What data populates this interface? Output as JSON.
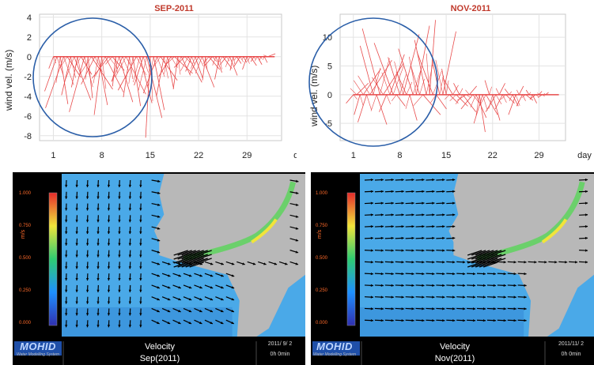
{
  "chart_data": [
    {
      "type": "line",
      "title": "SEP-2011",
      "ylabel": "wind vel. (m/s)",
      "xlabel": "day",
      "x_ticks": [
        "1",
        "8",
        "15",
        "22",
        "29"
      ],
      "y_ticks": [
        "4",
        "2",
        "0",
        "-2",
        "-4",
        "-6",
        "-8"
      ],
      "ylim": [
        -8.5,
        4.3
      ],
      "xlim": [
        -1,
        34
      ],
      "grid": true,
      "series_color": "#e84a4a",
      "annotation": "circle highlighting days 1-15",
      "stick_series": {
        "x": [
          1,
          1.5,
          2,
          2.5,
          3,
          3.5,
          4,
          4.5,
          5,
          5.5,
          6,
          6.5,
          7,
          7.5,
          8,
          8.5,
          9,
          9.5,
          10,
          10.5,
          11,
          11.5,
          12,
          12.5,
          13,
          13.5,
          14,
          14.5,
          15,
          15.5,
          16,
          16.5,
          17,
          17.5,
          18,
          18.5,
          19,
          19.5,
          20,
          20.5,
          21,
          21.5,
          22,
          22.5,
          23,
          23.5,
          24,
          24.5,
          25,
          25.5,
          26,
          26.5,
          27,
          27.5,
          28,
          28.5,
          29,
          29.5,
          30,
          30.5,
          31,
          31.5,
          32
        ],
        "y": [
          -1.2,
          -3.5,
          -4.8,
          -5.2,
          -2.1,
          -3.9,
          -4.4,
          -3.1,
          -1.8,
          -5.6,
          -4.2,
          -3.3,
          -2.8,
          -4.9,
          -5.9,
          -3.6,
          -2.2,
          -1.4,
          -3.0,
          -4.6,
          -2.5,
          -3.8,
          -4.1,
          -5.0,
          -3.4,
          -4.7,
          -2.9,
          -6.2,
          -8.2,
          -5.4,
          -3.7,
          -2.4,
          -4.0,
          -3.2,
          -2.0,
          -1.7,
          -3.3,
          -1.9,
          -1.1,
          -2.6,
          -1.5,
          -2.2,
          -1.8,
          -3.1,
          -2.4,
          -1.3,
          -0.9,
          -1.6,
          -2.3,
          -1.2,
          -0.8,
          -1.9,
          -1.4,
          -0.7,
          -1.0,
          -0.6,
          -1.3,
          -0.9,
          -0.5,
          -0.8,
          -0.4,
          -0.6,
          0.3
        ],
        "u": [
          -0.3,
          -0.8,
          0.5,
          -1.2,
          0.9,
          -0.6,
          1.1,
          -0.4,
          0.7,
          -1.0,
          0.3,
          1.4,
          -0.9,
          0.6,
          -0.5,
          1.2,
          -1.1,
          0.8,
          -0.2,
          0.9,
          -0.7,
          1.3,
          -0.4,
          0.5,
          -1.2,
          0.8,
          -0.6,
          1.0,
          -0.3,
          0.7,
          -0.9,
          1.1,
          -0.5,
          0.4,
          -0.8,
          1.2,
          -0.3,
          0.6,
          -0.7,
          0.9,
          -0.4,
          0.5,
          -0.6,
          0.8,
          -0.2,
          0.7,
          -0.5,
          0.4,
          -0.3,
          0.6,
          -0.4,
          0.5,
          -0.2,
          0.3,
          -0.4,
          0.2,
          -0.3,
          0.4,
          -0.2,
          0.3,
          -0.1,
          0.2,
          0.5
        ]
      }
    },
    {
      "type": "line",
      "title": "NOV-2011",
      "ylabel": "wind vel. (m/s)",
      "xlabel": "day",
      "x_ticks": [
        "1",
        "8",
        "15",
        "22",
        "29"
      ],
      "y_ticks": [
        "10",
        "5",
        "0",
        "-5"
      ],
      "ylim": [
        -8,
        14
      ],
      "xlim": [
        -1,
        33
      ],
      "grid": true,
      "series_color": "#e84a4a",
      "annotation": "circle highlighting days 1-15",
      "stick_series": {
        "x": [
          1,
          1.5,
          2,
          2.5,
          3,
          3.5,
          4,
          4.5,
          5,
          5.5,
          6,
          6.5,
          7,
          7.5,
          8,
          8.5,
          9,
          9.5,
          10,
          10.5,
          11,
          11.5,
          12,
          12.5,
          13,
          13.5,
          14,
          14.5,
          15,
          15.5,
          16,
          16.5,
          17,
          17.5,
          18,
          18.5,
          19,
          19.5,
          20,
          20.5,
          21,
          21.5,
          22,
          22.5,
          23,
          23.5,
          24,
          24.5,
          25,
          25.5,
          26,
          26.5,
          27,
          27.5,
          28,
          28.5,
          29,
          29.5,
          30
        ],
        "y": [
          -1.5,
          2.0,
          -3.5,
          4.5,
          -4.8,
          6.0,
          8.5,
          -5.2,
          11.5,
          5.5,
          -3.0,
          7.0,
          9.0,
          -2.0,
          6.5,
          10.5,
          4.0,
          -4.5,
          8.0,
          12.0,
          5.0,
          -3.5,
          9.5,
          13.0,
          7.5,
          -2.5,
          6.0,
          11.0,
          4.5,
          -1.5,
          3.0,
          -2.0,
          2.0,
          -3.0,
          -1.0,
          1.5,
          -2.5,
          -4.0,
          -6.5,
          -5.0,
          -3.5,
          2.5,
          -4.5,
          -3.0,
          2.0,
          -2.5,
          -1.5,
          1.0,
          -2.0,
          -3.5,
          1.5,
          -2.0,
          -1.0,
          0.8,
          -1.5,
          -0.8,
          0.6,
          -0.5,
          0.4
        ],
        "u": [
          -0.5,
          0.8,
          -0.4,
          1.2,
          -0.6,
          1.5,
          -0.9,
          0.7,
          -1.2,
          1.4,
          -0.5,
          1.0,
          -1.3,
          0.6,
          -0.8,
          1.1,
          -0.7,
          0.5,
          -1.0,
          0.9,
          -0.6,
          1.2,
          -0.8,
          0.4,
          -1.1,
          0.7,
          -0.5,
          0.9,
          -0.3,
          0.6,
          -0.7,
          0.8,
          -0.4,
          0.9,
          -0.6,
          0.5,
          -0.8,
          0.7,
          0.4,
          -0.6,
          0.8,
          -0.3,
          0.5,
          -0.7,
          0.4,
          -0.5,
          0.6,
          -0.3,
          0.4,
          -0.5,
          0.3,
          -0.4,
          0.5,
          -0.2,
          0.3,
          -0.4,
          0.2,
          -0.3,
          0.2
        ]
      }
    }
  ],
  "panels": [
    {
      "colorbar_unit": "m/s",
      "colorbar_ticks": [
        "1.000",
        "0.750",
        "0.500",
        "0.250",
        "0.000"
      ],
      "logo": "MOHID",
      "logo_sub": "Water Modelling System",
      "footer_title": "Velocity",
      "footer_month": "Sep(2011)",
      "date": "2011/ 9/ 2",
      "time": "0h 0min"
    },
    {
      "colorbar_unit": "m/s",
      "colorbar_ticks": [
        "1.000",
        "0.750",
        "0.500",
        "0.250",
        "0.000"
      ],
      "logo": "MOHID",
      "logo_sub": "Water Modelling System",
      "footer_title": "Velocity",
      "footer_month": "Nov(2011)",
      "date": "2011/11/ 2",
      "time": "0h 0min"
    }
  ],
  "colors": {
    "sea": "#4aa9e8",
    "sea_deep": "#2f86d4",
    "land": "#b8b8b8",
    "arrow": "#000000",
    "stick": "#e84a4a",
    "circle": "#2a5ea8"
  }
}
